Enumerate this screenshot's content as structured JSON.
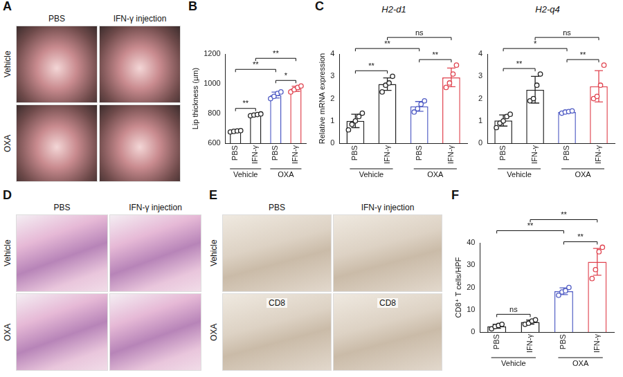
{
  "chart_data": [
    {
      "panel": "B",
      "type": "bar",
      "y_label": "Lip thickness (µm)",
      "categories": [
        "PBS",
        "IFN-γ",
        "PBS",
        "IFN-γ"
      ],
      "groups": [
        {
          "label": "Vehicle",
          "from": 0,
          "to": 1
        },
        {
          "label": "OXA",
          "from": 2,
          "to": 3
        }
      ],
      "values": [
        681,
        791,
        924,
        966
      ],
      "errors": [
        4,
        5,
        20,
        17
      ],
      "points": [
        [
          676,
          680,
          683,
          685
        ],
        [
          785,
          790,
          793,
          797
        ],
        [
          900,
          915,
          935,
          945
        ],
        [
          945,
          960,
          975,
          985
        ]
      ],
      "colors": [
        "#222222",
        "#222222",
        "#4f5bc4",
        "#e0434f"
      ],
      "ylim": [
        600,
        1200
      ],
      "yticks": [
        600,
        800,
        1000,
        1200
      ],
      "grid": false,
      "annotations": [
        {
          "from": 0,
          "to": 1,
          "label": "**"
        },
        {
          "from": 2,
          "to": 3,
          "label": "*"
        },
        {
          "from": 0,
          "to": 2,
          "label": "**"
        },
        {
          "from": 1,
          "to": 3,
          "label": "**"
        }
      ]
    },
    {
      "panel": "C",
      "type": "bar",
      "title": "H2-d1",
      "y_label": "Relative mRNA expression",
      "categories": [
        "PBS",
        "IFN-γ",
        "PBS",
        "IFN-γ"
      ],
      "groups": [
        {
          "label": "Vehicle",
          "from": 0,
          "to": 1
        },
        {
          "label": "OXA",
          "from": 2,
          "to": 3
        }
      ],
      "values": [
        1.0,
        2.65,
        1.65,
        2.95
      ],
      "errors": [
        0.3,
        0.28,
        0.22,
        0.42
      ],
      "points": [
        [
          0.6,
          0.85,
          1.0,
          1.2,
          1.35
        ],
        [
          2.3,
          2.6,
          2.7,
          3.0
        ],
        [
          1.4,
          1.55,
          1.75,
          1.9
        ],
        [
          2.5,
          2.7,
          3.1,
          3.5
        ]
      ],
      "colors": [
        "#222222",
        "#222222",
        "#4f5bc4",
        "#e0434f"
      ],
      "ylim": [
        0,
        4
      ],
      "yticks": [
        0,
        1,
        2,
        3,
        4
      ],
      "grid": false,
      "annotations": [
        {
          "from": 0,
          "to": 1,
          "label": "**"
        },
        {
          "from": 2,
          "to": 3,
          "label": "**"
        },
        {
          "from": 0,
          "to": 2,
          "label": "**"
        },
        {
          "from": 1,
          "to": 3,
          "label": "ns"
        }
      ]
    },
    {
      "panel": "C",
      "type": "bar",
      "title": "H2-q4",
      "categories": [
        "PBS",
        "IFN-γ",
        "PBS",
        "IFN-γ"
      ],
      "groups": [
        {
          "label": "Vehicle",
          "from": 0,
          "to": 1
        },
        {
          "label": "OXA",
          "from": 2,
          "to": 3
        }
      ],
      "values": [
        1.02,
        2.4,
        1.4,
        2.55
      ],
      "errors": [
        0.25,
        0.6,
        0.04,
        0.7
      ],
      "points": [
        [
          0.7,
          0.9,
          1.0,
          1.2,
          1.3
        ],
        [
          1.9,
          2.0,
          2.6,
          3.1
        ],
        [
          1.35,
          1.4,
          1.42,
          1.45
        ],
        [
          2.0,
          2.1,
          2.6,
          3.5
        ]
      ],
      "colors": [
        "#222222",
        "#222222",
        "#4f5bc4",
        "#e0434f"
      ],
      "ylim": [
        0,
        4
      ],
      "yticks": [
        0,
        1,
        2,
        3,
        4
      ],
      "grid": false,
      "annotations": [
        {
          "from": 0,
          "to": 1,
          "label": "**"
        },
        {
          "from": 2,
          "to": 3,
          "label": "**"
        },
        {
          "from": 0,
          "to": 2,
          "label": "*"
        },
        {
          "from": 1,
          "to": 3,
          "label": "ns"
        }
      ]
    },
    {
      "panel": "F",
      "type": "bar",
      "y_label": "CD8⁺ T cells/HPF",
      "categories": [
        "PBS",
        "IFN-γ",
        "PBS",
        "IFN-γ"
      ],
      "groups": [
        {
          "label": "Vehicle",
          "from": 0,
          "to": 1
        },
        {
          "label": "OXA",
          "from": 2,
          "to": 3
        }
      ],
      "values": [
        2.6,
        4.5,
        18.3,
        31.5
      ],
      "errors": [
        0.9,
        0.9,
        1.5,
        6
      ],
      "points": [
        [
          1.5,
          2.5,
          3,
          3.5
        ],
        [
          3.5,
          4,
          5,
          5.5
        ],
        [
          16.5,
          18,
          18.5,
          20
        ],
        [
          24,
          28,
          36,
          38
        ]
      ],
      "colors": [
        "#222222",
        "#222222",
        "#4f5bc4",
        "#e0434f"
      ],
      "ylim": [
        0,
        40
      ],
      "yticks": [
        0,
        10,
        20,
        30,
        40
      ],
      "grid": false,
      "annotations": [
        {
          "from": 0,
          "to": 1,
          "label": "ns"
        },
        {
          "from": 2,
          "to": 3,
          "label": "**"
        },
        {
          "from": 0,
          "to": 2,
          "label": "**"
        },
        {
          "from": 1,
          "to": 3,
          "label": "**"
        }
      ]
    }
  ],
  "image_panels": [
    {
      "panel": "A",
      "columns": [
        "PBS",
        "IFN-γ injection"
      ],
      "rows": [
        "Vehicle",
        "OXA"
      ],
      "cell_labels": [
        [
          null,
          null
        ],
        [
          null,
          null
        ]
      ]
    },
    {
      "panel": "D",
      "columns": [
        "PBS",
        "IFN-γ injection"
      ],
      "rows": [
        "Vehicle",
        "OXA"
      ],
      "cell_labels": [
        [
          null,
          null
        ],
        [
          null,
          null
        ]
      ]
    },
    {
      "panel": "E",
      "columns": [
        "PBS",
        "IFN-γ injection"
      ],
      "rows": [
        "Vehicle",
        "OXA"
      ],
      "cell_labels": [
        [
          null,
          null
        ],
        [
          "CD8",
          "CD8"
        ]
      ]
    }
  ]
}
